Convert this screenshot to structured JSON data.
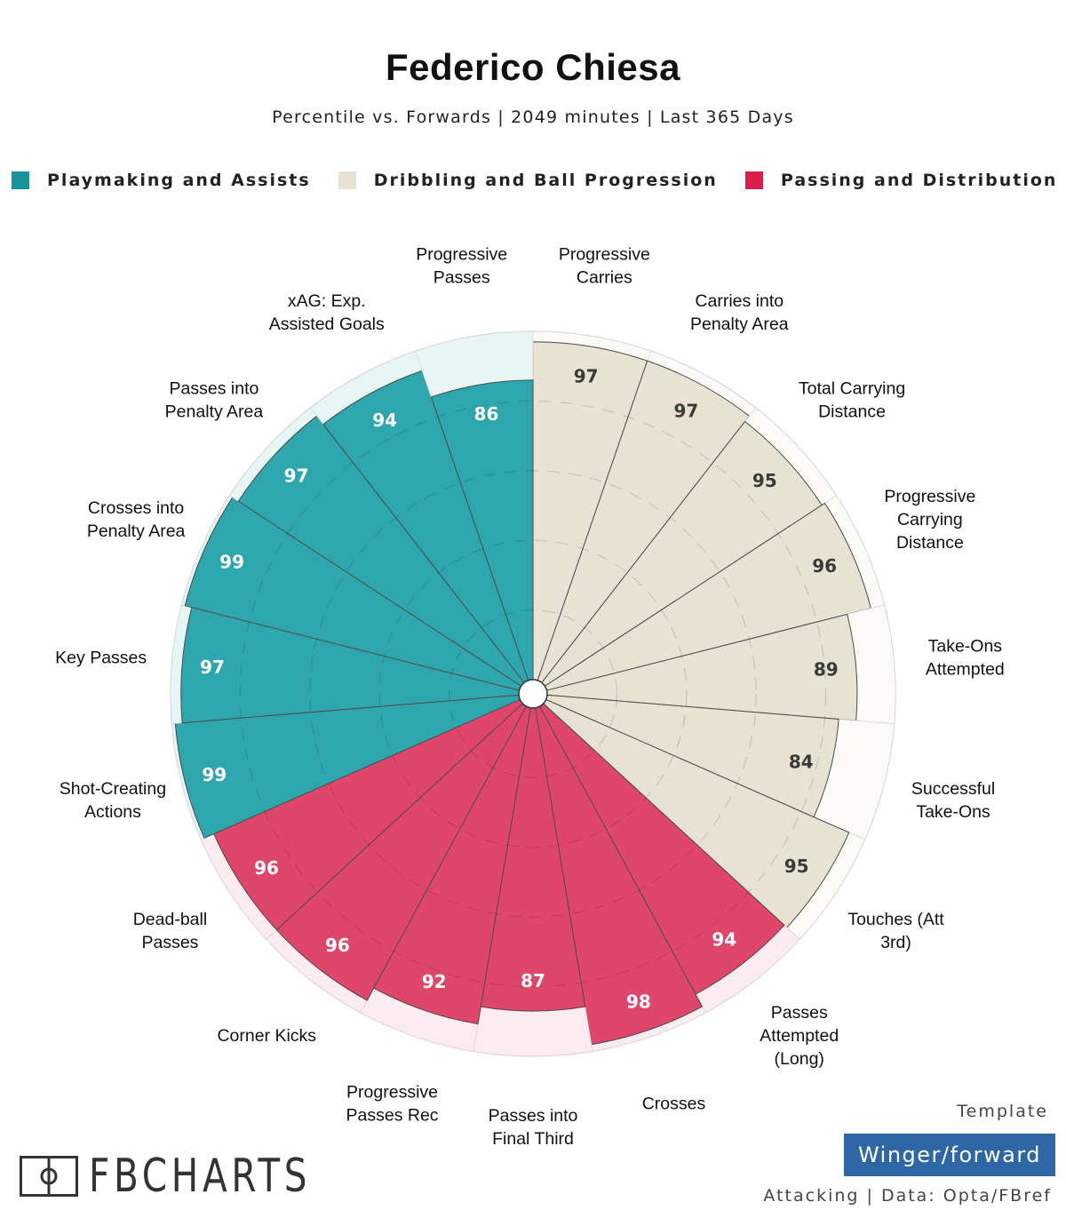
{
  "chart_data": {
    "type": "polar-bar",
    "title": "Federico Chiesa",
    "subtitle": "Percentile vs. Forwards | 2049 minutes | Last 365 Days",
    "legend": [
      {
        "name": "Playmaking and Assists",
        "color": "#2ea6ad"
      },
      {
        "name": "Dribbling and Ball Progression",
        "color": "#e7e2d2"
      },
      {
        "name": "Passing and Distribution",
        "color": "#e0456a"
      }
    ],
    "rlim": [
      0,
      100
    ],
    "grid": true,
    "categories": [
      {
        "label": [
          "Progressive",
          "Carries"
        ],
        "value": 97,
        "group": 1
      },
      {
        "label": [
          "Carries into",
          "Penalty Area"
        ],
        "value": 97,
        "group": 1
      },
      {
        "label": [
          "Total Carrying",
          "Distance"
        ],
        "value": 95,
        "group": 1
      },
      {
        "label": [
          "Progressive",
          "Carrying",
          "Distance"
        ],
        "value": 96,
        "group": 1
      },
      {
        "label": [
          "Take-Ons",
          "Attempted"
        ],
        "value": 89,
        "group": 1
      },
      {
        "label": [
          "Successful",
          "Take-Ons"
        ],
        "value": 84,
        "group": 1
      },
      {
        "label": [
          "Touches (Att",
          "3rd)"
        ],
        "value": 95,
        "group": 1
      },
      {
        "label": [
          "Passes",
          "Attempted",
          "(Long)"
        ],
        "value": 94,
        "group": 2
      },
      {
        "label": [
          "Crosses"
        ],
        "value": 98,
        "group": 2
      },
      {
        "label": [
          "Passes into",
          "Final Third"
        ],
        "value": 87,
        "group": 2
      },
      {
        "label": [
          "Progressive",
          "Passes Rec"
        ],
        "value": 92,
        "group": 2
      },
      {
        "label": [
          "Corner Kicks"
        ],
        "value": 96,
        "group": 2
      },
      {
        "label": [
          "Dead-ball",
          "Passes"
        ],
        "value": 96,
        "group": 2
      },
      {
        "label": [
          "Shot-Creating",
          "Actions"
        ],
        "value": 99,
        "group": 0
      },
      {
        "label": [
          "Key Passes"
        ],
        "value": 97,
        "group": 0
      },
      {
        "label": [
          "Crosses into",
          "Penalty Area"
        ],
        "value": 99,
        "group": 0
      },
      {
        "label": [
          "Passes into",
          "Penalty Area"
        ],
        "value": 97,
        "group": 0
      },
      {
        "label": [
          "xAG: Exp.",
          "Assisted Goals"
        ],
        "value": 94,
        "group": 0
      },
      {
        "label": [
          "Progressive",
          "Passes"
        ],
        "value": 86,
        "group": 0
      }
    ]
  },
  "footer": {
    "template_label": "Template",
    "template_value": "Winger/forward",
    "source": "Attacking | Data: Opta/FBref",
    "logo_text": "FBCHARTS"
  }
}
